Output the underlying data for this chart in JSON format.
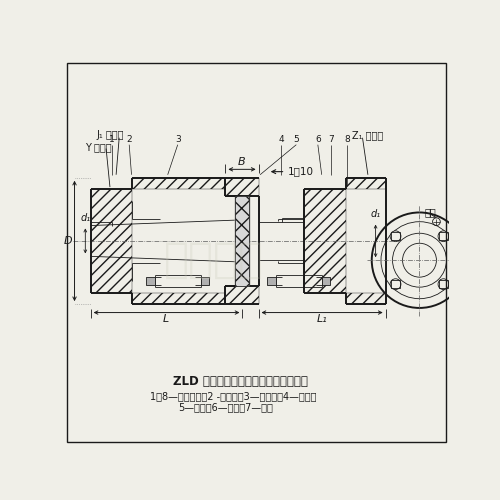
{
  "title": "ZLD 型圆锥形轴孔弹性柱销齿式联轴器",
  "subtitle1": "1、8—半联轴器；2 -外挡板；3—内挡板；4—外套；",
  "subtitle2": "5—柱销；6—螺栓；7—垫圈",
  "label_J1": "J₁ 型轴孔",
  "label_Y": "Y 型轴孔",
  "label_Z1": "Z₁ 型轴孔",
  "label_biaozhi": "标志",
  "label_B": "B",
  "label_ratio": "1：10",
  "label_D": "D",
  "label_d1_left": "d₁",
  "label_d1_right": "d₁",
  "label_L": "L",
  "label_L1": "L₁",
  "numbers_top": [
    "1",
    "2",
    "3",
    "4",
    "5",
    "6",
    "7",
    "8"
  ],
  "bg_color": "#f0efe8",
  "line_color": "#1a1a1a",
  "fig_width": 5.0,
  "fig_height": 5.0,
  "dpi": 100
}
